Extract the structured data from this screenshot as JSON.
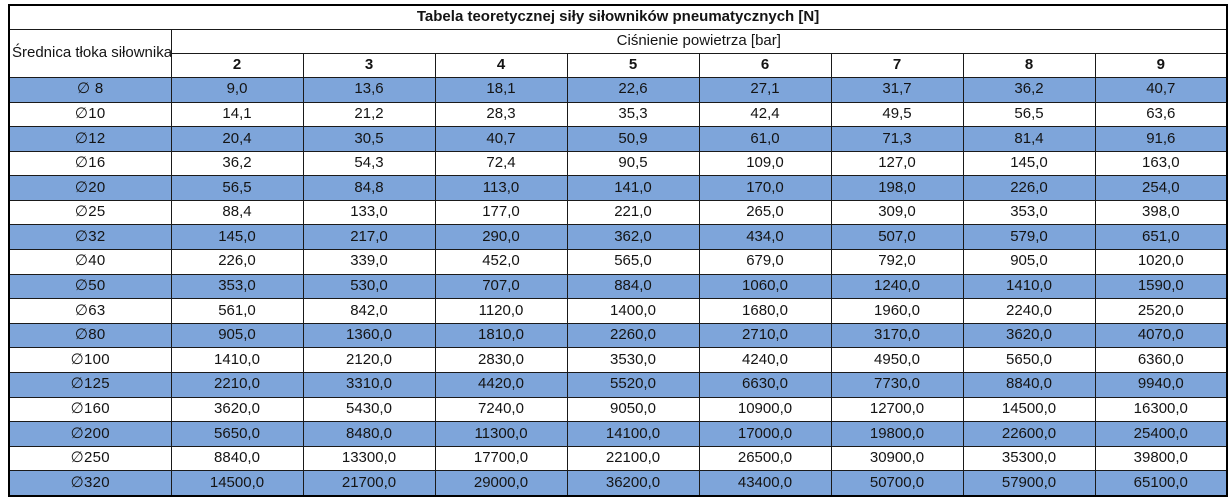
{
  "table": {
    "title": "Tabela teoretycznej siły siłowników pneumatycznych [N]",
    "row_header": "Średnica tłoka\nsiłownika",
    "col_group_header": "Ciśnienie powietrza [bar]",
    "pressures": [
      "2",
      "3",
      "4",
      "5",
      "6",
      "7",
      "8",
      "9"
    ],
    "rows": [
      {
        "diameter": "∅ 8",
        "values": [
          "9,0",
          "13,6",
          "18,1",
          "22,6",
          "27,1",
          "31,7",
          "36,2",
          "40,7"
        ]
      },
      {
        "diameter": "∅10",
        "values": [
          "14,1",
          "21,2",
          "28,3",
          "35,3",
          "42,4",
          "49,5",
          "56,5",
          "63,6"
        ]
      },
      {
        "diameter": "∅12",
        "values": [
          "20,4",
          "30,5",
          "40,7",
          "50,9",
          "61,0",
          "71,3",
          "81,4",
          "91,6"
        ]
      },
      {
        "diameter": "∅16",
        "values": [
          "36,2",
          "54,3",
          "72,4",
          "90,5",
          "109,0",
          "127,0",
          "145,0",
          "163,0"
        ]
      },
      {
        "diameter": "∅20",
        "values": [
          "56,5",
          "84,8",
          "113,0",
          "141,0",
          "170,0",
          "198,0",
          "226,0",
          "254,0"
        ]
      },
      {
        "diameter": "∅25",
        "values": [
          "88,4",
          "133,0",
          "177,0",
          "221,0",
          "265,0",
          "309,0",
          "353,0",
          "398,0"
        ]
      },
      {
        "diameter": "∅32",
        "values": [
          "145,0",
          "217,0",
          "290,0",
          "362,0",
          "434,0",
          "507,0",
          "579,0",
          "651,0"
        ]
      },
      {
        "diameter": "∅40",
        "values": [
          "226,0",
          "339,0",
          "452,0",
          "565,0",
          "679,0",
          "792,0",
          "905,0",
          "1020,0"
        ]
      },
      {
        "diameter": "∅50",
        "values": [
          "353,0",
          "530,0",
          "707,0",
          "884,0",
          "1060,0",
          "1240,0",
          "1410,0",
          "1590,0"
        ]
      },
      {
        "diameter": "∅63",
        "values": [
          "561,0",
          "842,0",
          "1120,0",
          "1400,0",
          "1680,0",
          "1960,0",
          "2240,0",
          "2520,0"
        ]
      },
      {
        "diameter": "∅80",
        "values": [
          "905,0",
          "1360,0",
          "1810,0",
          "2260,0",
          "2710,0",
          "3170,0",
          "3620,0",
          "4070,0"
        ]
      },
      {
        "diameter": "∅100",
        "values": [
          "1410,0",
          "2120,0",
          "2830,0",
          "3530,0",
          "4240,0",
          "4950,0",
          "5650,0",
          "6360,0"
        ]
      },
      {
        "diameter": "∅125",
        "values": [
          "2210,0",
          "3310,0",
          "4420,0",
          "5520,0",
          "6630,0",
          "7730,0",
          "8840,0",
          "9940,0"
        ]
      },
      {
        "diameter": "∅160",
        "values": [
          "3620,0",
          "5430,0",
          "7240,0",
          "9050,0",
          "10900,0",
          "12700,0",
          "14500,0",
          "16300,0"
        ]
      },
      {
        "diameter": "∅200",
        "values": [
          "5650,0",
          "8480,0",
          "11300,0",
          "14100,0",
          "17000,0",
          "19800,0",
          "22600,0",
          "25400,0"
        ]
      },
      {
        "diameter": "∅250",
        "values": [
          "8840,0",
          "13300,0",
          "17700,0",
          "22100,0",
          "26500,0",
          "30900,0",
          "35300,0",
          "39800,0"
        ]
      },
      {
        "diameter": "∅320",
        "values": [
          "14500,0",
          "21700,0",
          "29000,0",
          "36200,0",
          "43400,0",
          "50700,0",
          "57900,0",
          "65100,0"
        ]
      }
    ]
  },
  "colors": {
    "row_highlight": "#7EA5DA",
    "border": "#1a1a1a",
    "text": "#141414"
  }
}
